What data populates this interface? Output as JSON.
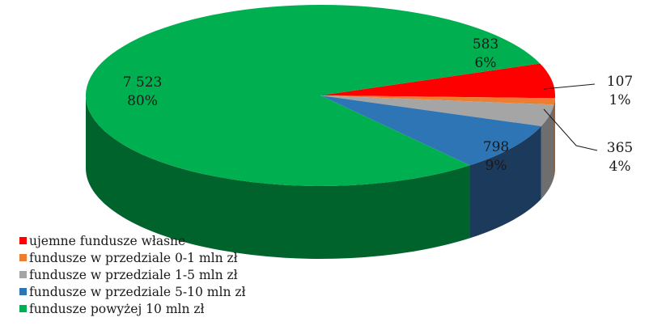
{
  "chart_data": {
    "type": "pie",
    "style": "3d",
    "categories": [
      "ujemne fundusze własne",
      "fundusze w przedziale 0-1 mln zł",
      "fundusze w przedziale 1-5 mln zł",
      "fundusze w przedziale 5-10 mln zł",
      "fundusze powyżej 10 mln zł"
    ],
    "values": [
      583,
      107,
      365,
      798,
      7523
    ],
    "value_labels": [
      "583",
      "107",
      "365",
      "798",
      "7 523"
    ],
    "percent_labels": [
      "6%",
      "1%",
      "4%",
      "9%",
      "80%"
    ],
    "colors": [
      "#ff0000",
      "#ed7d31",
      "#a5a5a5",
      "#2e75b6",
      "#00b050"
    ],
    "side_colors": [
      "#990000",
      "#a0521d",
      "#6e6e6e",
      "#1b3a5c",
      "#00632c"
    ],
    "legend_position": "bottom-left"
  }
}
